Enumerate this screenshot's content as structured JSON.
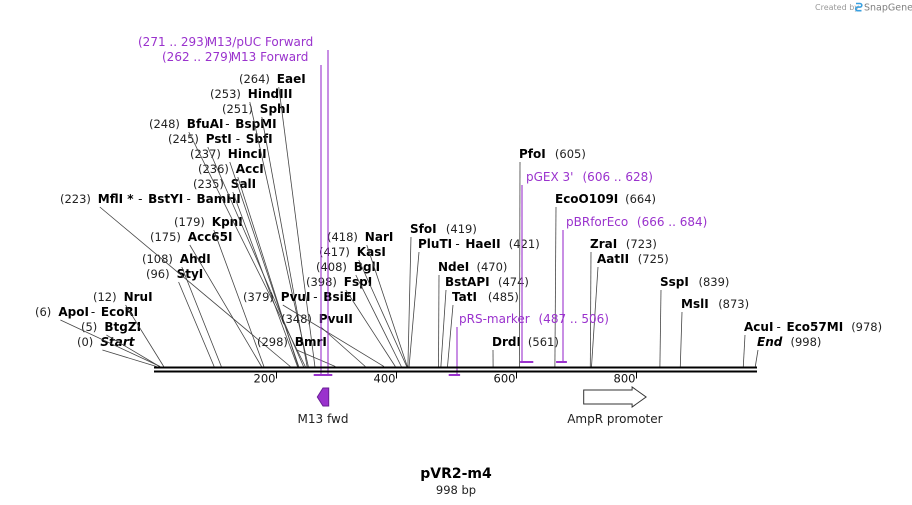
{
  "header": {
    "created_by": "Created by",
    "app_name": "SnapGene"
  },
  "plasmid": {
    "name": "pVR2-m4",
    "length_label": "998 bp",
    "length": 998
  },
  "axis": {
    "ticks": [
      {
        "value": 200,
        "label": "200"
      },
      {
        "value": 400,
        "label": "400"
      },
      {
        "value": 600,
        "label": "600"
      },
      {
        "value": 800,
        "label": "800"
      }
    ]
  },
  "sites": [
    {
      "id": "start",
      "pos": "(0)",
      "names": [
        "Start"
      ],
      "italic": true,
      "cut": [
        0
      ]
    },
    {
      "id": "btgzi",
      "pos": "(5)",
      "names": [
        "BtgZI"
      ],
      "cut": [
        5
      ]
    },
    {
      "id": "apoi",
      "pos": "(6)",
      "names": [
        "ApoI",
        "EcoRI"
      ],
      "cut": [
        6
      ]
    },
    {
      "id": "nrui",
      "pos": "(12)",
      "names": [
        "NruI"
      ],
      "cut": [
        12
      ]
    },
    {
      "id": "styi",
      "pos": "(96)",
      "names": [
        "StyI"
      ],
      "cut": [
        96
      ]
    },
    {
      "id": "ahdi",
      "pos": "(108)",
      "names": [
        "AhdI"
      ],
      "cut": [
        108
      ]
    },
    {
      "id": "acc65i",
      "pos": "(175)",
      "names": [
        "Acc65I"
      ],
      "cut": [
        175
      ]
    },
    {
      "id": "kpni",
      "pos": "(179)",
      "names": [
        "KpnI"
      ],
      "cut": [
        179
      ]
    },
    {
      "id": "mlfi",
      "pos": "(223)",
      "names": [
        "MflI *",
        "BstYI",
        "BamHI"
      ],
      "cut": [
        223
      ]
    },
    {
      "id": "sali",
      "pos": "(235)",
      "names": [
        "SalI"
      ],
      "cut": [
        235
      ]
    },
    {
      "id": "acci",
      "pos": "(236)",
      "names": [
        "AccI"
      ],
      "cut": [
        236
      ]
    },
    {
      "id": "hincii",
      "pos": "(237)",
      "names": [
        "HincII"
      ],
      "cut": [
        237
      ]
    },
    {
      "id": "psti",
      "pos": "(245)",
      "names": [
        "PstI",
        "SbfI"
      ],
      "cut": [
        245
      ]
    },
    {
      "id": "bfuai",
      "pos": "(248)",
      "names": [
        "BfuAI",
        "BspMI"
      ],
      "cut": [
        248
      ]
    },
    {
      "id": "sphi",
      "pos": "(251)",
      "names": [
        "SphI"
      ],
      "cut": [
        251
      ]
    },
    {
      "id": "hindiii",
      "pos": "(253)",
      "names": [
        "HindIII"
      ],
      "cut": [
        253
      ]
    },
    {
      "id": "eaei",
      "pos": "(264)",
      "names": [
        "EaeI"
      ],
      "cut": [
        264
      ]
    },
    {
      "id": "bmri",
      "pos": "(298)",
      "names": [
        "BmrI"
      ],
      "cut": [
        298
      ]
    },
    {
      "id": "pvuii",
      "pos": "(348)",
      "names": [
        "PvuII"
      ],
      "cut": [
        348
      ]
    },
    {
      "id": "pvui",
      "pos": "(379)",
      "names": [
        "PvuI",
        "BsiEI"
      ],
      "cut": [
        379
      ]
    },
    {
      "id": "fspi",
      "pos": "(398)",
      "names": [
        "FspI"
      ],
      "cut": [
        398
      ]
    },
    {
      "id": "bgli",
      "pos": "(408)",
      "names": [
        "BglI"
      ],
      "cut": [
        408
      ]
    },
    {
      "id": "kasi",
      "pos": "(417)",
      "names": [
        "KasI"
      ],
      "cut": [
        417
      ]
    },
    {
      "id": "nari",
      "pos": "(418)",
      "names": [
        "NarI"
      ],
      "cut": [
        418
      ]
    },
    {
      "id": "sfoi",
      "pos": "(419)",
      "names": [
        "SfoI"
      ],
      "cut": [
        419
      ]
    },
    {
      "id": "pluti",
      "pos": "(421)",
      "names": [
        "PluTI",
        "HaeII"
      ],
      "cut": [
        421
      ]
    },
    {
      "id": "ndei",
      "pos": "(470)",
      "names": [
        "NdeI"
      ],
      "cut": [
        470
      ]
    },
    {
      "id": "bstapi",
      "pos": "(474)",
      "names": [
        "BstAPI"
      ],
      "cut": [
        474
      ]
    },
    {
      "id": "tati",
      "pos": "(485)",
      "names": [
        "TatI"
      ],
      "cut": [
        485
      ]
    },
    {
      "id": "drdi",
      "pos": "(561)",
      "names": [
        "DrdI"
      ],
      "cut": [
        561
      ]
    },
    {
      "id": "pfoi",
      "pos": "(605)",
      "names": [
        "PfoI"
      ],
      "cut": [
        605
      ]
    },
    {
      "id": "ecoo109i",
      "pos": "(664)",
      "names": [
        "EcoO109I"
      ],
      "cut": [
        664
      ]
    },
    {
      "id": "zrai",
      "pos": "(723)",
      "names": [
        "ZraI"
      ],
      "cut": [
        723
      ]
    },
    {
      "id": "aatii",
      "pos": "(725)",
      "names": [
        "AatII"
      ],
      "cut": [
        725
      ]
    },
    {
      "id": "sspi",
      "pos": "(839)",
      "names": [
        "SspI"
      ],
      "cut": [
        839
      ]
    },
    {
      "id": "msli",
      "pos": "(873)",
      "names": [
        "MslI"
      ],
      "cut": [
        873
      ]
    },
    {
      "id": "acui",
      "pos": "(978)",
      "names": [
        "AcuI",
        "Eco57MI"
      ],
      "cut": [
        978
      ]
    },
    {
      "id": "end",
      "pos": "(998)",
      "names": [
        "End"
      ],
      "italic": true,
      "cut": [
        998
      ]
    }
  ],
  "primers": [
    {
      "id": "m13-puc-forward",
      "range": "(271 .. 293)",
      "name": "M13/pUC Forward",
      "start": 271,
      "end": 293
    },
    {
      "id": "m13-forward",
      "range": "(262 .. 279)",
      "name": "M13 Forward",
      "start": 262,
      "end": 279
    },
    {
      "id": "pgex-3",
      "range": "(606 .. 628)",
      "name": "pGEX 3'",
      "start": 606,
      "end": 628
    },
    {
      "id": "pbrforeco",
      "range": "(666 .. 684)",
      "name": "pBRforEco",
      "start": 666,
      "end": 684
    },
    {
      "id": "prs-marker",
      "range": "(487 .. 506)",
      "name": "pRS-marker",
      "start": 487,
      "end": 506
    }
  ],
  "features": [
    {
      "id": "m13-fwd",
      "name": "M13 fwd",
      "start": 268,
      "end": 287,
      "direction": "reverse",
      "color": "#9a32cd"
    },
    {
      "id": "ampr-promoter",
      "name": "AmpR promoter",
      "start": 712,
      "end": 816,
      "direction": "forward",
      "color": "#ffffff"
    }
  ],
  "colors": {
    "primer": "#9a32cd",
    "backbone": "#000000",
    "site_line": "#444444"
  }
}
